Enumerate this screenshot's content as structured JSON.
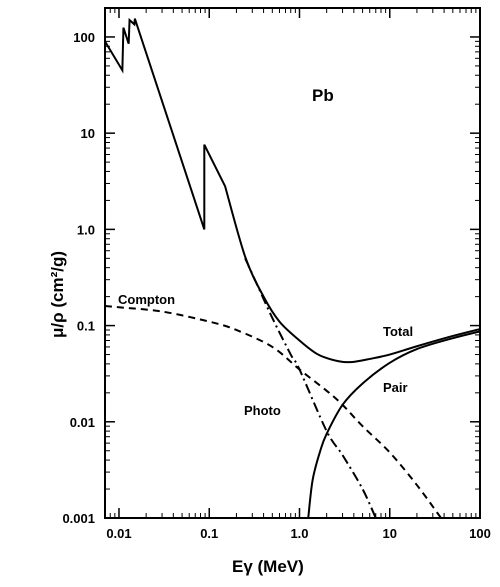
{
  "chart_data": {
    "type": "line",
    "title": "",
    "xlabel": "Eγ (MeV)",
    "ylabel": "μ/ρ  (cm²/g)",
    "xscale": "log",
    "yscale": "log",
    "xlim": [
      0.007,
      100
    ],
    "ylim": [
      0.001,
      200
    ],
    "x_tick_labels": [
      "0.01",
      "0.1",
      "1.0",
      "10",
      "100"
    ],
    "y_tick_labels": [
      "0.001",
      "0.01",
      "0.1",
      "1.0",
      "10",
      "100"
    ],
    "annotations": {
      "element": "Pb",
      "compton": "Compton",
      "photo": "Photo",
      "total": "Total",
      "pair": "Pair"
    },
    "series": [
      {
        "name": "Total",
        "style": "solid",
        "points": [
          [
            0.007,
            90
          ],
          [
            0.0109,
            45
          ],
          [
            0.0112,
            125
          ],
          [
            0.0128,
            85
          ],
          [
            0.0131,
            150
          ],
          [
            0.0148,
            135
          ],
          [
            0.015,
            155
          ],
          [
            0.0882,
            1.0
          ],
          [
            0.0882,
            7.6
          ],
          [
            0.15,
            2.8
          ],
          [
            0.25,
            0.52
          ],
          [
            0.4,
            0.2
          ],
          [
            0.6,
            0.11
          ],
          [
            1.0,
            0.07
          ],
          [
            1.5,
            0.052
          ],
          [
            2.0,
            0.046
          ],
          [
            3.0,
            0.042
          ],
          [
            4.0,
            0.042
          ],
          [
            6.0,
            0.045
          ],
          [
            10.0,
            0.05
          ],
          [
            20.0,
            0.061
          ],
          [
            50.0,
            0.078
          ],
          [
            100.0,
            0.092
          ]
        ]
      },
      {
        "name": "Compton",
        "style": "dashed",
        "points": [
          [
            0.007,
            0.16
          ],
          [
            0.01,
            0.155
          ],
          [
            0.03,
            0.14
          ],
          [
            0.1,
            0.11
          ],
          [
            0.2,
            0.09
          ],
          [
            0.5,
            0.06
          ],
          [
            1.0,
            0.035
          ],
          [
            2.0,
            0.021
          ],
          [
            3.0,
            0.015
          ],
          [
            5.0,
            0.009
          ],
          [
            10.0,
            0.0048
          ],
          [
            20.0,
            0.0022
          ],
          [
            37.0,
            0.001
          ]
        ]
      },
      {
        "name": "Photo",
        "style": "dashdot",
        "points": [
          [
            0.25,
            0.5
          ],
          [
            0.35,
            0.25
          ],
          [
            0.5,
            0.12
          ],
          [
            0.8,
            0.05
          ],
          [
            1.0,
            0.035
          ],
          [
            2.0,
            0.008
          ],
          [
            3.0,
            0.0045
          ],
          [
            5.0,
            0.002
          ],
          [
            7.0,
            0.001
          ]
        ]
      },
      {
        "name": "Pair",
        "style": "solid",
        "points": [
          [
            1.25,
            0.001
          ],
          [
            1.4,
            0.0025
          ],
          [
            1.7,
            0.005
          ],
          [
            2.0,
            0.0075
          ],
          [
            3.0,
            0.015
          ],
          [
            5.0,
            0.025
          ],
          [
            10.0,
            0.041
          ],
          [
            20.0,
            0.057
          ],
          [
            50.0,
            0.074
          ],
          [
            100.0,
            0.087
          ]
        ]
      }
    ]
  }
}
